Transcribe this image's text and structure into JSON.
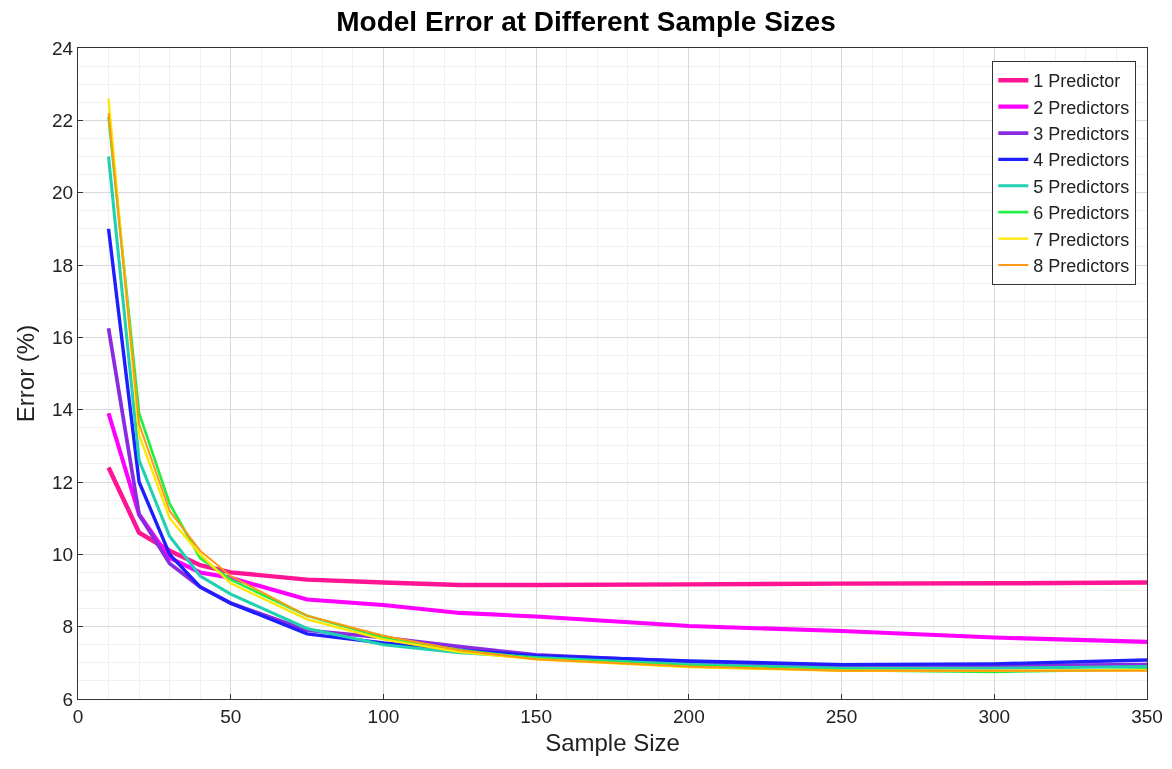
{
  "chart_data": {
    "type": "line",
    "title": "Model Error at Different Sample Sizes",
    "xlabel": "Sample Size",
    "ylabel": "Error (%)",
    "x": [
      10,
      20,
      30,
      40,
      50,
      75,
      100,
      125,
      150,
      200,
      250,
      300,
      350
    ],
    "series": [
      {
        "name": "1 Predictor",
        "color": "#ff1493",
        "values": [
          12.4,
          10.6,
          10.1,
          9.7,
          9.5,
          9.3,
          9.22,
          9.15,
          9.15,
          9.17,
          9.19,
          9.2,
          9.22
        ]
      },
      {
        "name": "2 Predictors",
        "color": "#ff00ff",
        "values": [
          13.9,
          11.1,
          9.9,
          9.5,
          9.35,
          8.75,
          8.6,
          8.38,
          8.28,
          8.02,
          7.88,
          7.7,
          7.58
        ]
      },
      {
        "name": "3 Predictors",
        "color": "#8a2be2",
        "values": [
          16.25,
          11.1,
          9.75,
          9.1,
          8.65,
          7.9,
          7.7,
          7.45,
          7.22,
          7.03,
          6.92,
          6.92,
          6.95
        ]
      },
      {
        "name": "4 Predictors",
        "color": "#1e1eff",
        "values": [
          19.0,
          12.0,
          10.0,
          9.1,
          8.65,
          7.8,
          7.55,
          7.35,
          7.2,
          7.05,
          6.95,
          6.97,
          7.08
        ]
      },
      {
        "name": "5 Predictors",
        "color": "#20d0b0",
        "values": [
          21.0,
          12.6,
          10.5,
          9.4,
          8.9,
          7.95,
          7.5,
          7.28,
          7.15,
          6.95,
          6.85,
          6.85,
          6.9
        ]
      },
      {
        "name": "6 Predictors",
        "color": "#22ee44",
        "values": [
          22.1,
          13.9,
          11.4,
          9.9,
          9.3,
          8.3,
          7.7,
          7.35,
          7.12,
          6.92,
          6.8,
          6.75,
          6.82
        ]
      },
      {
        "name": "7 Predictors",
        "color": "#ffe600",
        "values": [
          22.6,
          13.3,
          11.0,
          10.0,
          9.2,
          8.2,
          7.65,
          7.3,
          7.1,
          6.88,
          6.78,
          6.78,
          6.8
        ]
      },
      {
        "name": "8 Predictors",
        "color": "#ff9914",
        "values": [
          22.2,
          13.6,
          11.2,
          10.1,
          9.4,
          8.3,
          7.75,
          7.35,
          7.1,
          6.9,
          6.78,
          6.78,
          6.78
        ]
      }
    ],
    "xlim": [
      0,
      350
    ],
    "xticks": [
      0,
      50,
      100,
      150,
      200,
      250,
      300,
      350
    ],
    "ylim": [
      6,
      24
    ],
    "yticks": [
      6,
      8,
      10,
      12,
      14,
      16,
      18,
      20,
      22,
      24
    ],
    "grid": true,
    "legend": "top right",
    "marker": "none",
    "line_style": "solid"
  }
}
